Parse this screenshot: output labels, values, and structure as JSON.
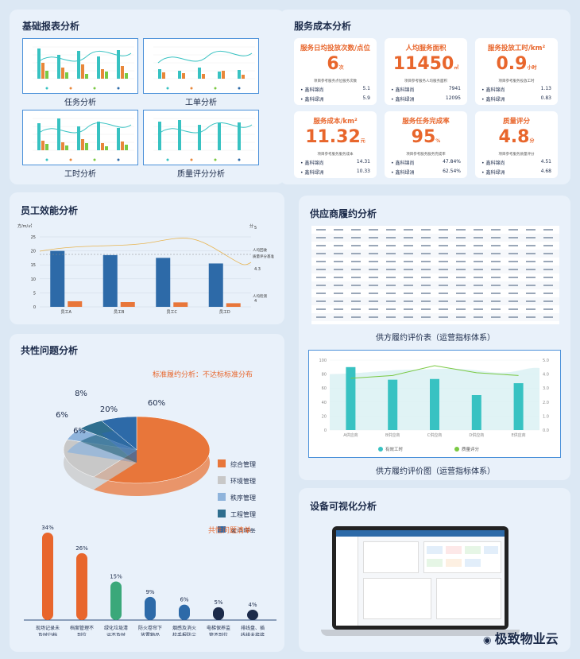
{
  "basic": {
    "title": "基础报表分析",
    "captions": [
      "任务分析",
      "工单分析",
      "工时分析",
      "质量评分分析"
    ]
  },
  "cost": {
    "title": "服务成本分析",
    "kpis": [
      {
        "title": "服务日均投放次数/点位",
        "value": "6",
        "unit": "次",
        "note": "项目参考服务点位服务次数",
        "rows": [
          [
            "鑫科锦尚",
            "5.1"
          ],
          [
            "鑫科绿洲",
            "5.9"
          ]
        ]
      },
      {
        "title": "人均服务面积",
        "value": "11450",
        "unit": "㎡",
        "note": "项目参考服务人均服务面积",
        "rows": [
          [
            "鑫科锦尚",
            "7941"
          ],
          [
            "鑫科绿洲",
            "12095"
          ]
        ]
      },
      {
        "title": "服务投放工时/km²",
        "value": "0.9",
        "unit": "小时",
        "note": "项目参考服务投放工时",
        "rows": [
          [
            "鑫科锦尚",
            "1.13"
          ],
          [
            "鑫科绿洲",
            "0.83"
          ]
        ]
      },
      {
        "title": "服务成本/km²",
        "value": "11.32",
        "unit": "元",
        "note": "项目参考服务服务成本",
        "rows": [
          [
            "鑫科锦尚",
            "14.31"
          ],
          [
            "鑫科绿洲",
            "10.33"
          ]
        ]
      },
      {
        "title": "服务任务完成率",
        "value": "95",
        "unit": "%",
        "note": "项目参考服务服务完成率",
        "rows": [
          [
            "鑫科锦尚",
            "47.84%"
          ],
          [
            "鑫科绿洲",
            "62.54%"
          ]
        ]
      },
      {
        "title": "质量评分",
        "value": "4.8",
        "unit": "分",
        "note": "项目参考服务质量评分",
        "rows": [
          [
            "鑫科锦尚",
            "4.51"
          ],
          [
            "鑫科绿洲",
            "4.68"
          ]
        ]
      }
    ]
  },
  "staff": {
    "title": "员工效能分析",
    "ylabel_left": "方/m/㎡",
    "ylabel_right": "分",
    "ref_label_1": "人均回收",
    "ref_label_2": "质量评分基准",
    "ref_value": "4.3",
    "low_label": "人均检测",
    "right_ticks": [
      "5",
      "4"
    ]
  },
  "supplier": {
    "title": "供应商履约分析",
    "table_caption": "供方履约评价表（运营指标体系）",
    "chart_caption": "供方履约评价图（运营指标体系）"
  },
  "common": {
    "title": "共性问题分析",
    "pie_title": "标准履约分析：不达标标准分布",
    "list_title": "共性问题清单"
  },
  "device": {
    "title": "设备可视化分析"
  },
  "watermark": "极致物业云",
  "chart_data": [
    {
      "type": "bar",
      "title": "",
      "categories": [
        "员工A",
        "员工B",
        "员工C",
        "员工D"
      ],
      "series": [
        {
          "values": [
            20,
            18.5,
            17.5,
            15.5
          ]
        },
        {
          "values": [
            2,
            1.7,
            1.6,
            1.3
          ]
        }
      ],
      "ylim": [
        0,
        25
      ],
      "yticks": [
        0,
        5,
        10,
        15,
        20,
        25
      ]
    },
    {
      "type": "bar",
      "categories": [
        "A供应商",
        "B供应商",
        "C供应商",
        "D供应商",
        "E供应商"
      ],
      "series": [
        {
          "name": "有效工时",
          "values": [
            90,
            72,
            73,
            50,
            67
          ]
        },
        {
          "name": "质量评分",
          "values": [
            3.7,
            3.9,
            4.6,
            4.1,
            3.9
          ]
        }
      ],
      "ylim": [
        0,
        100
      ],
      "y2lim": [
        0,
        5
      ],
      "yticks": [
        0,
        20,
        40,
        60,
        80,
        100
      ],
      "y2ticks": [
        "0.0",
        "1.0",
        "2.0",
        "3.0",
        "4.0",
        "5.0"
      ]
    },
    {
      "type": "pie",
      "title": "标准履约分析：不达标标准分布",
      "slices": [
        {
          "name": "综合管理",
          "value": 60,
          "label": "60%",
          "color": "#e8763a"
        },
        {
          "name": "环境管理",
          "value": 20,
          "label": "20%",
          "color": "#c8c8c8"
        },
        {
          "name": "秩序管理",
          "value": 6,
          "label": "6%",
          "color": "#8fb4dc"
        },
        {
          "name": "工程管理",
          "value": 6,
          "label": "6%",
          "color": "#2f6e8e"
        },
        {
          "name": "客户服务",
          "value": 8,
          "label": "8%",
          "color": "#2d6aa8"
        }
      ]
    },
    {
      "type": "bar",
      "title": "共性问题清单",
      "categories": [
        "现场记录未及时归档",
        "档案管理不到位",
        "绿化垃圾清运不及时",
        "防火卷帘下放置物品",
        "烟感及消火栓手报防尘罩未摘除",
        "电梯保养监管不到位",
        "排线盘、插线排未接接地保护线"
      ],
      "values": [
        34,
        26,
        15,
        9,
        6,
        5,
        4
      ],
      "labels": [
        "34%",
        "26%",
        "15%",
        "9%",
        "6%",
        "5%",
        "4%"
      ]
    }
  ],
  "colors": {
    "orange": "#e8662c",
    "blue": "#2d6aa8",
    "teal": "#38c2c2",
    "green": "#7ac943"
  }
}
